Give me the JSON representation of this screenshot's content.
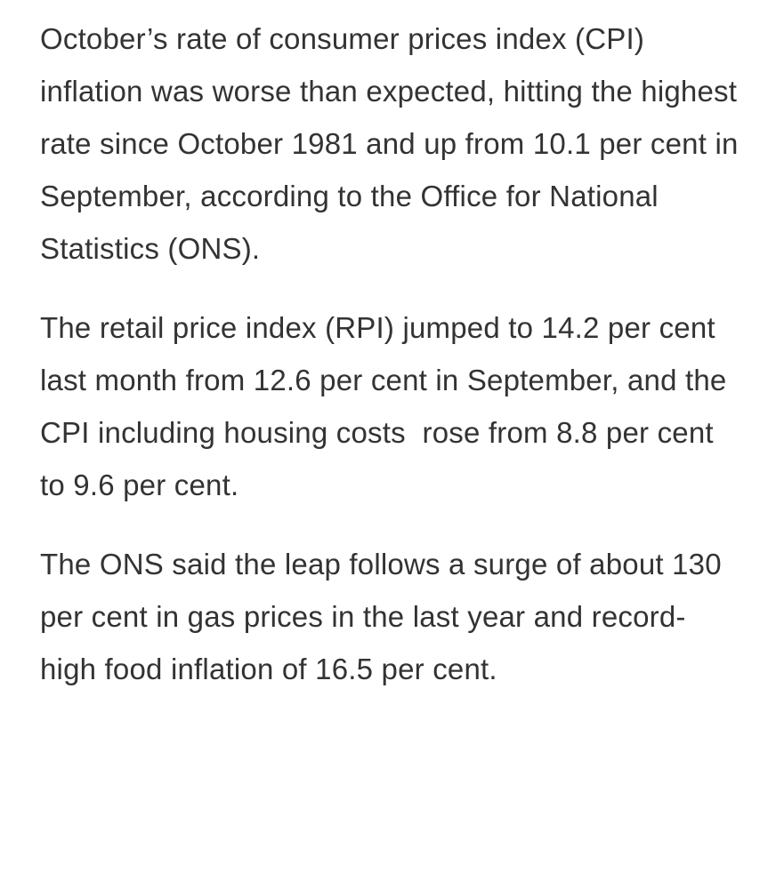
{
  "article": {
    "background_color": "#ffffff",
    "text_color": "#333333",
    "paragraphs": [
      {
        "text": "October’s rate of consumer prices index (CPI) inflation was worse than expected, hitting the highest rate since October 1981 and up from 10.1 per cent in September, according to the Office for National Statistics (ONS)."
      },
      {
        "text": "The retail price index (RPI) jumped to 14.2 per cent last month from 12.6 per cent in September, and the CPI including housing costs  rose from 8.8 per cent to 9.6 per cent."
      },
      {
        "text": "The ONS said the leap follows a surge of about 130 per cent in gas prices in the last year and record-high food inflation of 16.5 per cent."
      }
    ],
    "facts": {
      "cpi_september": "10.1 per cent",
      "rpi_last_month": "14.2 per cent",
      "rpi_september": "12.6 per cent",
      "cpi_incl_housing_from": "8.8 per cent",
      "cpi_incl_housing_to": "9.6 per cent",
      "gas_price_surge": "130 per cent",
      "food_inflation": "16.5 per cent"
    }
  }
}
